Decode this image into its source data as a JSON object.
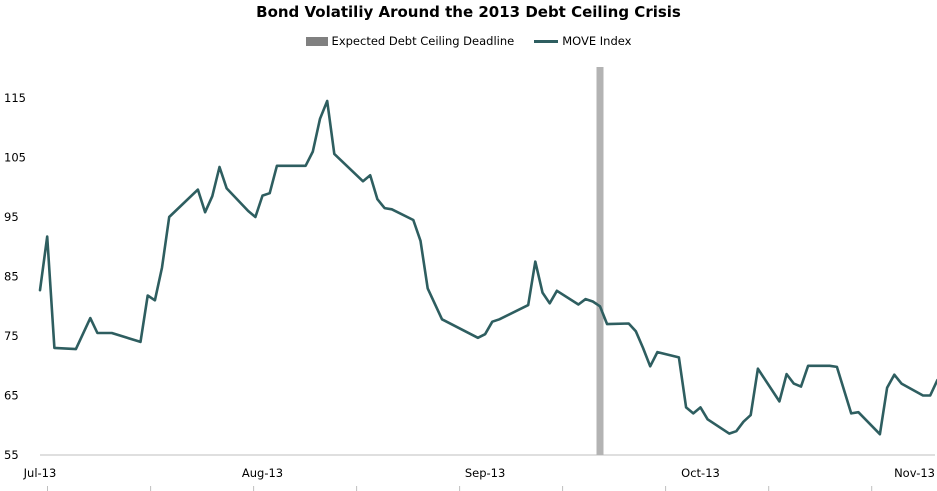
{
  "chart_data": {
    "type": "line",
    "title": "Bond Volatiliy Around the 2013 Debt Ceiling Crisis",
    "xlabel": "",
    "ylabel": "",
    "ylim": [
      55,
      120
    ],
    "yticks": [
      55,
      65,
      75,
      85,
      95,
      105,
      115
    ],
    "xlim": [
      "2013-07-01",
      "2013-11-01"
    ],
    "xticks": [
      {
        "date": "2013-07-01",
        "label": "Jul-13"
      },
      {
        "date": "2013-08-01",
        "label": "Aug-13"
      },
      {
        "date": "2013-09-01",
        "label": "Sep-13"
      },
      {
        "date": "2013-10-01",
        "label": "Oct-13"
      },
      {
        "date": "2013-11-01",
        "label": "Nov-13"
      }
    ],
    "gridlines": false,
    "legend_position": "top",
    "legend": [
      "Expected Debt Ceiling Deadline",
      "MOVE Index"
    ],
    "deadline": {
      "name": "Expected Debt Ceiling Deadline",
      "date": "2013-09-17",
      "color": "#b3b3b3"
    },
    "series": [
      {
        "name": "MOVE Index",
        "color": "#2e5e60",
        "points": [
          [
            "2013-07-01",
            82.7
          ],
          [
            "2013-07-02",
            91.7
          ],
          [
            "2013-07-03",
            73.0
          ],
          [
            "2013-07-06",
            72.8
          ],
          [
            "2013-07-08",
            78.0
          ],
          [
            "2013-07-09",
            75.5
          ],
          [
            "2013-07-11",
            75.5
          ],
          [
            "2013-07-15",
            74.0
          ],
          [
            "2013-07-16",
            81.8
          ],
          [
            "2013-07-17",
            81.0
          ],
          [
            "2013-07-18",
            86.5
          ],
          [
            "2013-07-19",
            95.0
          ],
          [
            "2013-07-23",
            99.6
          ],
          [
            "2013-07-24",
            95.8
          ],
          [
            "2013-07-25",
            98.5
          ],
          [
            "2013-07-26",
            103.4
          ],
          [
            "2013-07-27",
            99.8
          ],
          [
            "2013-07-30",
            96.0
          ],
          [
            "2013-07-31",
            95.0
          ],
          [
            "2013-08-01",
            98.6
          ],
          [
            "2013-08-02",
            99.0
          ],
          [
            "2013-08-03",
            103.6
          ],
          [
            "2013-08-07",
            103.6
          ],
          [
            "2013-08-08",
            106.0
          ],
          [
            "2013-08-09",
            111.5
          ],
          [
            "2013-08-10",
            114.5
          ],
          [
            "2013-08-11",
            105.6
          ],
          [
            "2013-08-15",
            101.0
          ],
          [
            "2013-08-16",
            102.0
          ],
          [
            "2013-08-17",
            98.0
          ],
          [
            "2013-08-18",
            96.5
          ],
          [
            "2013-08-19",
            96.3
          ],
          [
            "2013-08-22",
            94.5
          ],
          [
            "2013-08-23",
            91.0
          ],
          [
            "2013-08-24",
            83.0
          ],
          [
            "2013-08-26",
            77.8
          ],
          [
            "2013-08-31",
            74.7
          ],
          [
            "2013-09-01",
            75.3
          ],
          [
            "2013-09-02",
            77.4
          ],
          [
            "2013-09-03",
            77.8
          ],
          [
            "2013-09-07",
            80.2
          ],
          [
            "2013-09-08",
            87.5
          ],
          [
            "2013-09-09",
            82.3
          ],
          [
            "2013-09-10",
            80.5
          ],
          [
            "2013-09-11",
            82.6
          ],
          [
            "2013-09-14",
            80.3
          ],
          [
            "2013-09-15",
            81.2
          ],
          [
            "2013-09-16",
            80.8
          ],
          [
            "2013-09-17",
            80.0
          ],
          [
            "2013-09-18",
            77.0
          ],
          [
            "2013-09-21",
            77.1
          ],
          [
            "2013-09-22",
            75.8
          ],
          [
            "2013-09-23",
            73.0
          ],
          [
            "2013-09-24",
            69.9
          ],
          [
            "2013-09-25",
            72.3
          ],
          [
            "2013-09-28",
            71.4
          ],
          [
            "2013-09-29",
            63.0
          ],
          [
            "2013-09-30",
            62.0
          ],
          [
            "2013-10-01",
            63.0
          ],
          [
            "2013-10-02",
            61.0
          ],
          [
            "2013-10-05",
            58.6
          ],
          [
            "2013-10-06",
            59.0
          ],
          [
            "2013-10-07",
            60.6
          ],
          [
            "2013-10-08",
            61.7
          ],
          [
            "2013-10-09",
            69.5
          ],
          [
            "2013-10-12",
            64.0
          ],
          [
            "2013-10-13",
            68.6
          ],
          [
            "2013-10-14",
            67.0
          ],
          [
            "2013-10-15",
            66.5
          ],
          [
            "2013-10-16",
            70.0
          ],
          [
            "2013-10-19",
            70.0
          ],
          [
            "2013-10-20",
            69.8
          ],
          [
            "2013-10-22",
            62.0
          ],
          [
            "2013-10-23",
            62.2
          ],
          [
            "2013-10-26",
            58.5
          ],
          [
            "2013-10-27",
            66.3
          ],
          [
            "2013-10-28",
            68.5
          ],
          [
            "2013-10-29",
            67.0
          ],
          [
            "2013-11-01",
            65.0
          ],
          [
            "2013-11-02",
            65.0
          ],
          [
            "2013-11-03",
            67.6
          ],
          [
            "2013-11-04",
            67.6
          ],
          [
            "2013-11-05",
            68.0
          ],
          [
            "2013-11-08",
            72.0
          ]
        ]
      }
    ]
  }
}
